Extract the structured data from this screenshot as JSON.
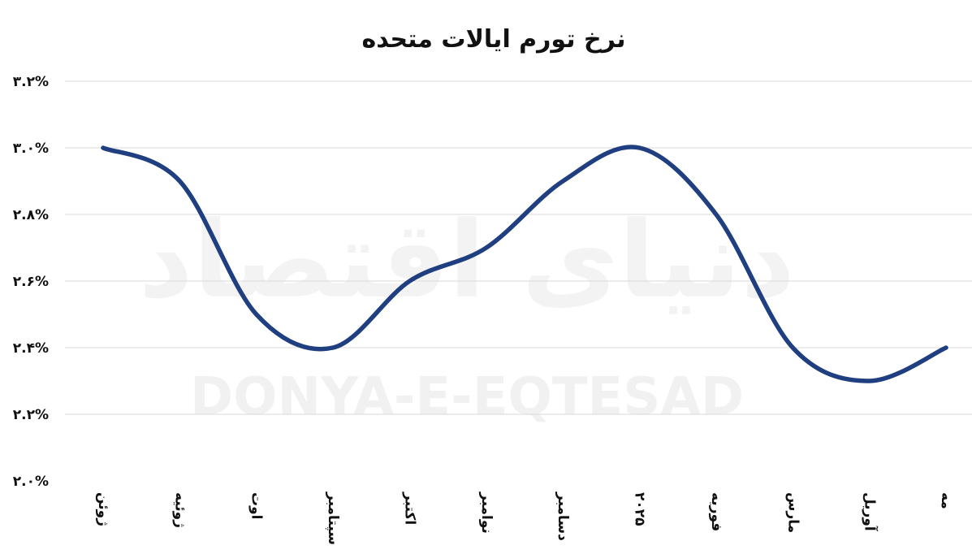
{
  "watermark": {
    "latin": "DONYA-E-EQTESAD",
    "persian": "دنیای اقتصاد"
  },
  "chart_data": {
    "type": "line",
    "title": "نرخ تورم ایالات متحده",
    "categories": [
      "ژوئن",
      "ژوئیه",
      "اوت",
      "سپتامبر",
      "اکتبر",
      "نوامبر",
      "دسامبر",
      "۲۰۲۵",
      "فوریه",
      "مارس",
      "آوریل",
      "مه"
    ],
    "series": [
      {
        "values": [
          3.0,
          2.9,
          2.5,
          2.4,
          2.6,
          2.7,
          2.9,
          3.0,
          2.8,
          2.4,
          2.3,
          2.4
        ],
        "color": "#1f3f80"
      }
    ],
    "yticks": [
      {
        "value": 3.2,
        "label": "۳.۲%"
      },
      {
        "value": 3.0,
        "label": "۳.۰%"
      },
      {
        "value": 2.8,
        "label": "۲.۸%"
      },
      {
        "value": 2.6,
        "label": "۲.۶%"
      },
      {
        "value": 2.4,
        "label": "۲.۴%"
      },
      {
        "value": 2.2,
        "label": "۲.۲%"
      },
      {
        "value": 2.0,
        "label": "۲.۰%"
      }
    ],
    "ylim": [
      2.0,
      3.2
    ],
    "grid": true,
    "legend": "none"
  }
}
